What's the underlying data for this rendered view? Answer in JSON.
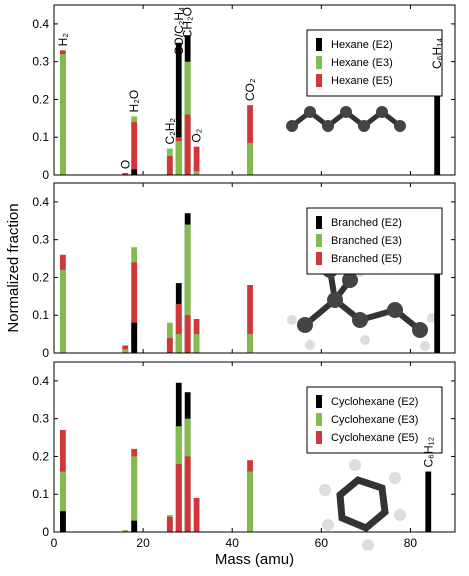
{
  "chart_data": [
    {
      "type": "bar",
      "xlim": [
        0,
        90
      ],
      "ylim": [
        0,
        0.45
      ],
      "yticks": [
        0,
        0.1,
        0.2,
        0.3,
        0.4
      ],
      "x": [
        2,
        16,
        18,
        26,
        28,
        30,
        32,
        44,
        86
      ],
      "series": [
        {
          "name": "Hexane (E2)",
          "color": "#000000",
          "values": [
            0,
            0,
            0.015,
            0,
            0.35,
            0.37,
            0,
            0,
            0.27
          ]
        },
        {
          "name": "Hexane (E3)",
          "color": "#80bd4c",
          "values": [
            0.32,
            0.005,
            0.155,
            0.07,
            0.09,
            0.3,
            0.01,
            0.085,
            0
          ]
        },
        {
          "name": "Hexane (E5)",
          "color": "#d0363a",
          "values": [
            0.33,
            0.005,
            0.14,
            0.05,
            0.1,
            0.16,
            0.075,
            0.185,
            0
          ]
        }
      ],
      "annotations": [
        {
          "text": "H₂",
          "x": 2
        },
        {
          "text": "O",
          "x": 16
        },
        {
          "text": "H₂O",
          "x": 18
        },
        {
          "text": "C₂H₂",
          "x": 26
        },
        {
          "text": "CO/C₂H₄",
          "x": 28
        },
        {
          "text": "CH₂O",
          "x": 30
        },
        {
          "text": "O₂",
          "x": 32
        },
        {
          "text": "CO₂",
          "x": 44
        },
        {
          "text": "C₆H₁₄",
          "x": 86
        }
      ]
    },
    {
      "type": "bar",
      "xlim": [
        0,
        90
      ],
      "ylim": [
        0,
        0.45
      ],
      "yticks": [
        0,
        0.1,
        0.2,
        0.3,
        0.4
      ],
      "ylabel": "Normalized fraction",
      "x": [
        2,
        16,
        18,
        26,
        28,
        30,
        32,
        44,
        86
      ],
      "series": [
        {
          "name": "Branched (E2)",
          "color": "#000000",
          "values": [
            0,
            0,
            0.08,
            0,
            0.185,
            0.37,
            0,
            0,
            0.37
          ]
        },
        {
          "name": "Branched (E3)",
          "color": "#80bd4c",
          "values": [
            0.22,
            0.01,
            0.28,
            0.08,
            0.05,
            0.34,
            0.05,
            0.05,
            0
          ]
        },
        {
          "name": "Branched (E5)",
          "color": "#d0363a",
          "values": [
            0.26,
            0.02,
            0.24,
            0.04,
            0.13,
            0.1,
            0.09,
            0.18,
            0
          ]
        }
      ]
    },
    {
      "type": "bar",
      "xlim": [
        0,
        90
      ],
      "ylim": [
        0,
        0.45
      ],
      "yticks": [
        0,
        0.1,
        0.2,
        0.3,
        0.4
      ],
      "xticks": [
        0,
        20,
        40,
        60,
        80
      ],
      "xlabel": "Mass (amu)",
      "x": [
        2,
        16,
        18,
        26,
        28,
        30,
        32,
        44,
        84
      ],
      "series": [
        {
          "name": "Cyclohexane (E2)",
          "color": "#000000",
          "values": [
            0.055,
            0,
            0.03,
            0,
            0.395,
            0.37,
            0,
            0,
            0.16
          ]
        },
        {
          "name": "Cyclohexane (E3)",
          "color": "#80bd4c",
          "values": [
            0.16,
            0.005,
            0.2,
            0.045,
            0.28,
            0.3,
            0,
            0.16,
            0
          ]
        },
        {
          "name": "Cyclohexane (E5)",
          "color": "#d0363a",
          "values": [
            0.27,
            0,
            0.22,
            0.04,
            0.18,
            0.2,
            0.09,
            0.19,
            0
          ]
        }
      ],
      "annotations": [
        {
          "text": "C₆H₁₂",
          "x": 84
        }
      ]
    }
  ]
}
